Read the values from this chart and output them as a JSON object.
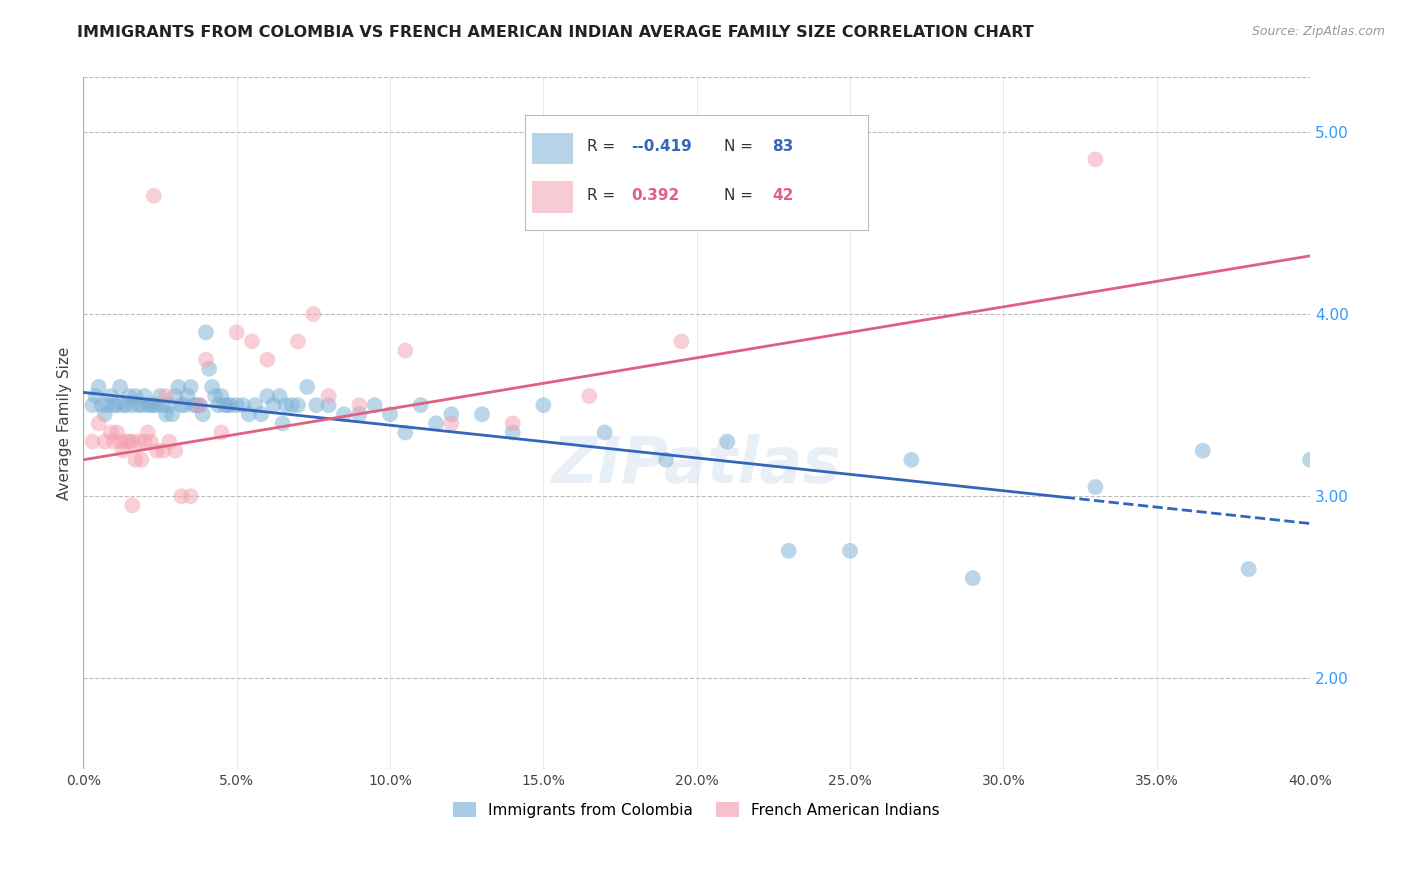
{
  "title": "IMMIGRANTS FROM COLOMBIA VS FRENCH AMERICAN INDIAN AVERAGE FAMILY SIZE CORRELATION CHART",
  "source": "Source: ZipAtlas.com",
  "ylabel": "Average Family Size",
  "legend_blue_label": "Immigrants from Colombia",
  "legend_pink_label": "French American Indians",
  "blue_color": "#7BAFD4",
  "pink_color": "#F4A0B0",
  "trend_blue_color": "#3366BB",
  "trend_pink_color": "#E06080",
  "blue_scatter_x": [
    0.3,
    0.4,
    0.5,
    0.6,
    0.7,
    0.8,
    0.9,
    1.0,
    1.1,
    1.2,
    1.3,
    1.4,
    1.5,
    1.6,
    1.7,
    1.8,
    1.9,
    2.0,
    2.1,
    2.2,
    2.3,
    2.4,
    2.5,
    2.6,
    2.7,
    2.8,
    2.9,
    3.0,
    3.1,
    3.2,
    3.3,
    3.4,
    3.5,
    3.6,
    3.7,
    3.8,
    3.9,
    4.0,
    4.1,
    4.2,
    4.3,
    4.4,
    4.5,
    4.6,
    4.7,
    4.8,
    5.0,
    5.2,
    5.4,
    5.6,
    5.8,
    6.0,
    6.2,
    6.4,
    6.6,
    6.8,
    7.0,
    7.3,
    7.6,
    8.0,
    8.5,
    9.0,
    9.5,
    10.0,
    10.5,
    11.0,
    11.5,
    12.0,
    13.0,
    14.0,
    15.0,
    17.0,
    19.0,
    21.0,
    23.0,
    25.0,
    27.0,
    29.0,
    33.0,
    36.5,
    38.0,
    40.0,
    6.5
  ],
  "blue_scatter_y": [
    3.5,
    3.55,
    3.6,
    3.5,
    3.45,
    3.5,
    3.55,
    3.5,
    3.5,
    3.6,
    3.5,
    3.5,
    3.55,
    3.5,
    3.55,
    3.5,
    3.5,
    3.55,
    3.5,
    3.5,
    3.5,
    3.5,
    3.55,
    3.5,
    3.45,
    3.5,
    3.45,
    3.55,
    3.6,
    3.5,
    3.5,
    3.55,
    3.6,
    3.5,
    3.5,
    3.5,
    3.45,
    3.9,
    3.7,
    3.6,
    3.55,
    3.5,
    3.55,
    3.5,
    3.5,
    3.5,
    3.5,
    3.5,
    3.45,
    3.5,
    3.45,
    3.55,
    3.5,
    3.55,
    3.5,
    3.5,
    3.5,
    3.6,
    3.5,
    3.5,
    3.45,
    3.45,
    3.5,
    3.45,
    3.35,
    3.5,
    3.4,
    3.45,
    3.45,
    3.35,
    3.5,
    3.35,
    3.2,
    3.3,
    2.7,
    2.7,
    3.2,
    2.55,
    3.05,
    3.25,
    2.6,
    3.2,
    3.4
  ],
  "pink_scatter_x": [
    0.3,
    0.5,
    0.7,
    0.9,
    1.0,
    1.1,
    1.2,
    1.3,
    1.4,
    1.5,
    1.6,
    1.7,
    1.8,
    1.9,
    2.0,
    2.1,
    2.2,
    2.4,
    2.6,
    2.8,
    3.0,
    3.2,
    3.5,
    4.0,
    4.5,
    5.0,
    5.5,
    6.0,
    7.0,
    8.0,
    9.0,
    10.5,
    12.0,
    14.0,
    16.5,
    19.5,
    3.8,
    2.3,
    7.5,
    33.0,
    1.6,
    2.7
  ],
  "pink_scatter_y": [
    3.3,
    3.4,
    3.3,
    3.35,
    3.3,
    3.35,
    3.3,
    3.25,
    3.3,
    3.3,
    3.3,
    3.2,
    3.3,
    3.2,
    3.3,
    3.35,
    3.3,
    3.25,
    3.25,
    3.3,
    3.25,
    3.0,
    3.0,
    3.75,
    3.35,
    3.9,
    3.85,
    3.75,
    3.85,
    3.55,
    3.5,
    3.8,
    3.4,
    3.4,
    3.55,
    3.85,
    3.5,
    4.65,
    4.0,
    4.85,
    2.95,
    3.55
  ],
  "xmin": 0.0,
  "xmax": 40.0,
  "ymin": 1.5,
  "ymax": 5.3,
  "blue_line_start": 0.0,
  "blue_line_solid_end": 32.0,
  "blue_line_end": 40.0,
  "blue_line_y0": 3.57,
  "blue_line_slope": -0.018,
  "pink_line_start": 0.0,
  "pink_line_end": 40.0,
  "pink_line_y0": 3.2,
  "pink_line_slope": 0.028,
  "watermark": "ZIPatlas",
  "background_color": "#FFFFFF",
  "grid_color": "#BBBBBB",
  "yticks": [
    2.0,
    3.0,
    4.0,
    5.0
  ],
  "xtick_pct": [
    0.0,
    5.0,
    10.0,
    15.0,
    20.0,
    25.0,
    30.0,
    35.0,
    40.0
  ],
  "legend_r_blue": "-0.419",
  "legend_n_blue": "83",
  "legend_r_pink": "0.392",
  "legend_n_pink": "42"
}
